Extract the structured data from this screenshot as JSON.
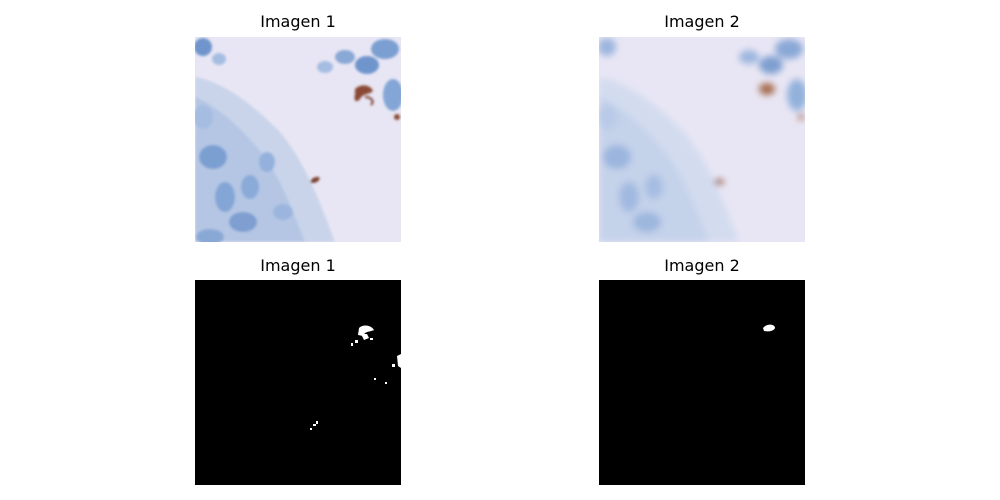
{
  "figure": {
    "panels": [
      {
        "title": "Imagen 1",
        "content": "histology-tissue-sharp"
      },
      {
        "title": "Imagen 2",
        "content": "histology-tissue-blurred"
      },
      {
        "title": "Imagen 1",
        "content": "binary-mask-detailed"
      },
      {
        "title": "Imagen 2",
        "content": "binary-mask-smoothed"
      }
    ]
  },
  "colors": {
    "background": "#e8e6f4",
    "cell_blue": "#8fb0d8",
    "nucleus_blue": "#6f95cc",
    "stain_brown": "#8a4a34",
    "mask_black": "#000000",
    "mask_white": "#ffffff"
  }
}
